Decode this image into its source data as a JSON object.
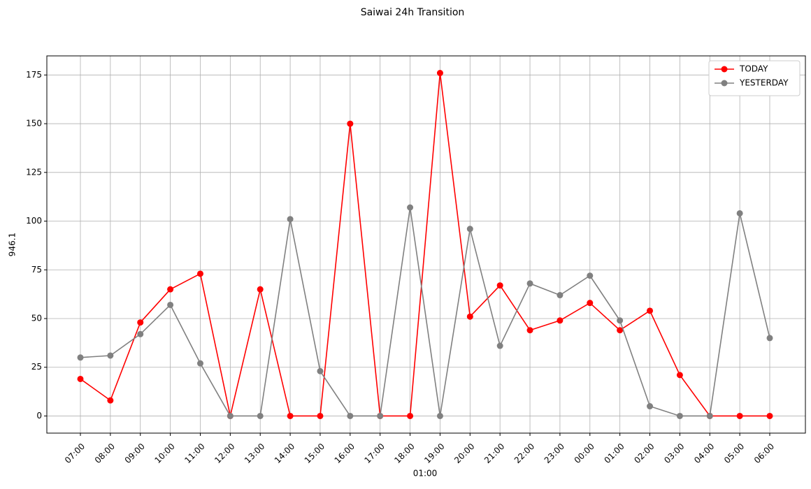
{
  "chart_data": {
    "type": "line",
    "title": "Saiwai 24h Transition",
    "xlabel": "01:00",
    "ylabel": "946.1",
    "categories": [
      "07:00",
      "08:00",
      "09:00",
      "10:00",
      "11:00",
      "12:00",
      "13:00",
      "14:00",
      "15:00",
      "16:00",
      "17:00",
      "18:00",
      "19:00",
      "20:00",
      "21:00",
      "22:00",
      "23:00",
      "00:00",
      "01:00",
      "02:00",
      "03:00",
      "04:00",
      "05:00",
      "06:00"
    ],
    "series": [
      {
        "name": "TODAY",
        "color": "#ff0000",
        "values": [
          19,
          8,
          48,
          65,
          73,
          0,
          65,
          0,
          0,
          150,
          0,
          0,
          176,
          51,
          67,
          44,
          49,
          58,
          44,
          54,
          21,
          0,
          0,
          0
        ]
      },
      {
        "name": "YESTERDAY",
        "color": "#808080",
        "values": [
          30,
          31,
          42,
          57,
          27,
          0,
          0,
          101,
          23,
          0,
          0,
          107,
          0,
          96,
          36,
          68,
          62,
          72,
          49,
          5,
          0,
          0,
          104,
          40
        ]
      }
    ],
    "ylim": [
      -8.8,
      184.8
    ],
    "yticks": [
      0,
      25,
      50,
      75,
      100,
      125,
      150,
      175
    ],
    "grid": true,
    "legend": "upper right"
  }
}
